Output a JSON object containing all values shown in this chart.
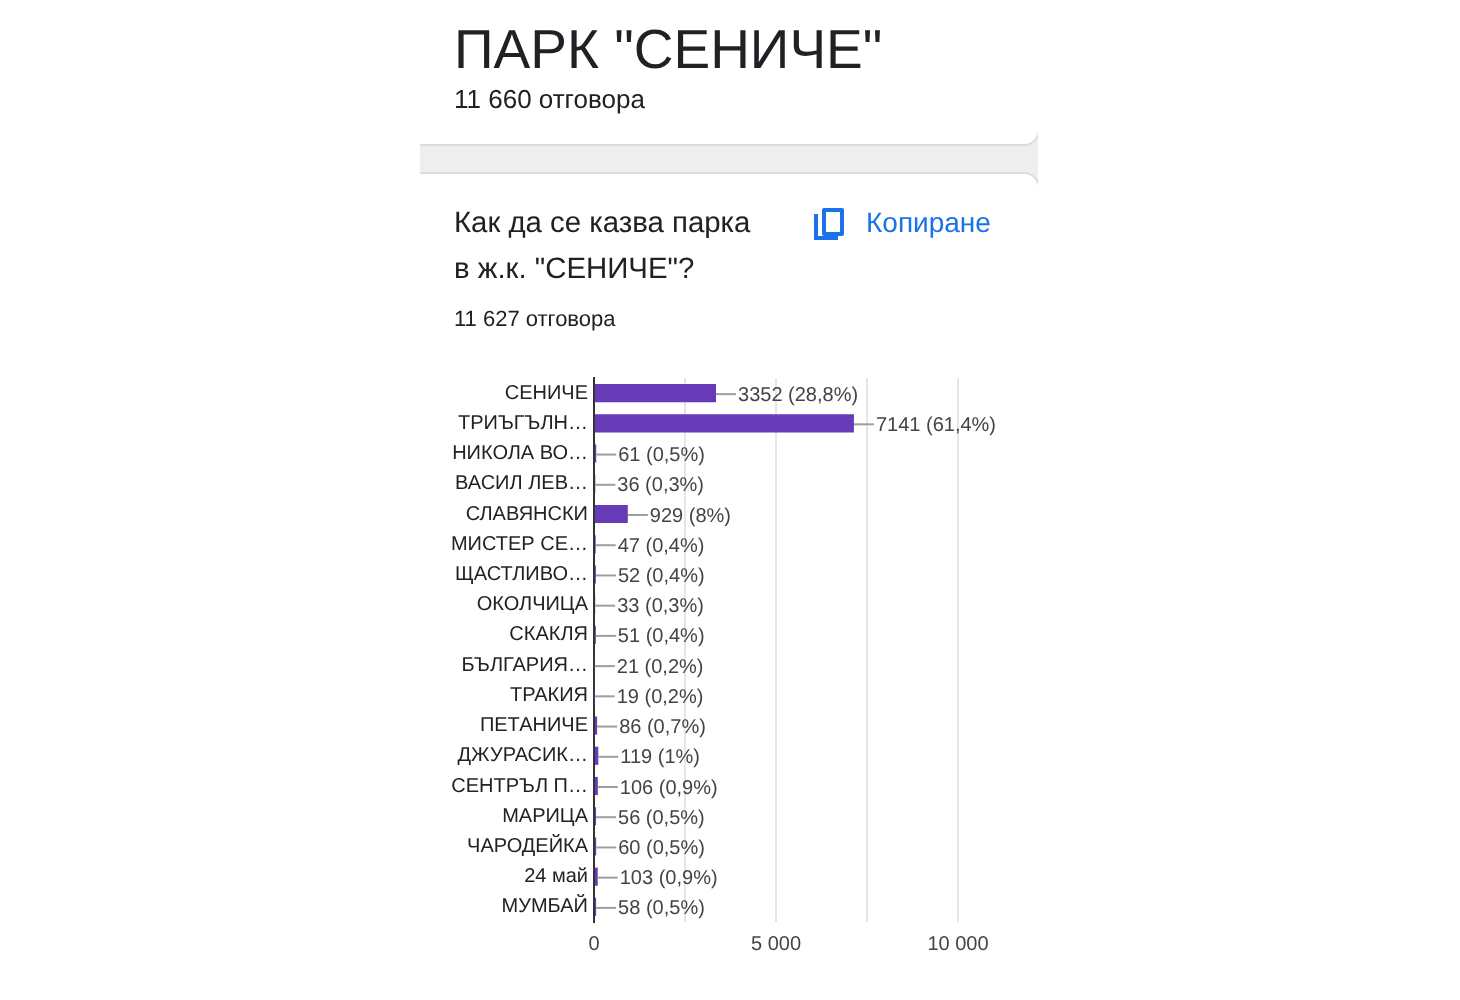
{
  "chart_data": {
    "type": "bar",
    "orientation": "horizontal",
    "title": "Как да се казва парка в ж.к. \"СЕНИЧЕ\"?",
    "subtitle": "11 627 отговора",
    "annotations": [
      "ПАРК \"СЕНИЧЕ\"",
      "11 660 отговора",
      "Копиране"
    ],
    "categories": [
      "СЕНИЧЕ",
      "ТРИЪГЪЛН…",
      "НИКОЛА ВО…",
      "ВАСИЛ ЛЕВ…",
      "СЛАВЯНСКИ",
      "МИСТЕР СЕ…",
      "ЩАСТЛИВО…",
      "ОКОЛЧИЦА",
      "СКАКЛЯ",
      "БЪЛГАРИЯ…",
      "ТРАКИЯ",
      "ПЕТАНИЧЕ",
      "ДЖУРАСИК…",
      "СЕНТРЪЛ П…",
      "МАРИЦА",
      "ЧАРОДЕЙКА",
      "24 май",
      "МУМБАЙ"
    ],
    "values": [
      3352,
      7141,
      61,
      36,
      929,
      47,
      52,
      33,
      51,
      21,
      19,
      86,
      119,
      106,
      56,
      60,
      103,
      58
    ],
    "value_labels": [
      "3352 (28,8%)",
      "7141 (61,4%)",
      "61 (0,5%)",
      "36 (0,3%)",
      "929 (8%)",
      "47 (0,4%)",
      "52 (0,4%)",
      "33 (0,3%)",
      "51 (0,4%)",
      "21 (0,2%)",
      "19 (0,2%)",
      "86 (0,7%)",
      "119 (1%)",
      "106 (0,9%)",
      "56 (0,5%)",
      "60 (0,5%)",
      "103 (0,9%)",
      "58 (0,5%)"
    ],
    "color": "#673ab7",
    "xlim": [
      0,
      10000
    ],
    "xticks": [
      0,
      {
        "value": 2500,
        "label": null
      },
      {
        "value": 5000,
        "label": "5 000"
      },
      {
        "value": 7500,
        "label": null
      },
      {
        "value": 10000,
        "label": "10 000"
      }
    ],
    "grid": "x"
  }
}
